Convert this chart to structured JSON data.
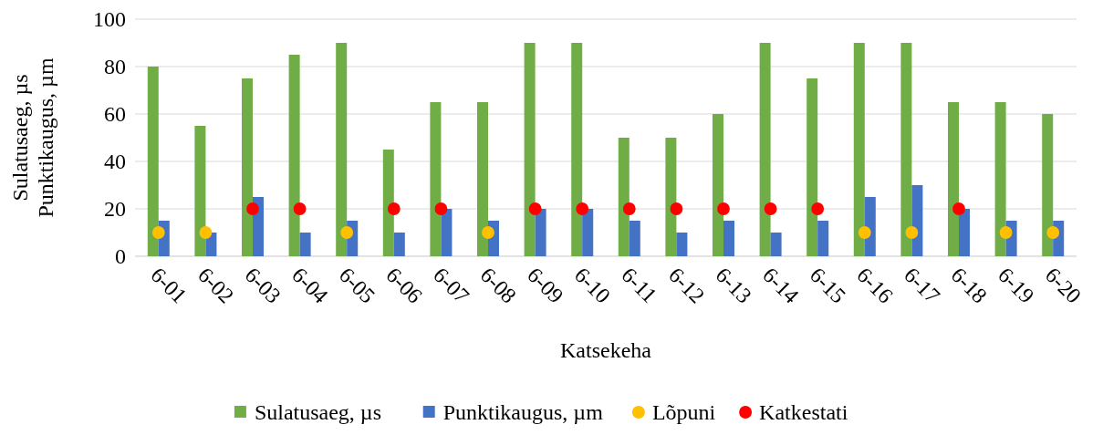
{
  "chart_data": {
    "type": "bar",
    "xlabel": "Katsekeha",
    "ylabel": "Sulatusaeg, µs\nPunktikaugus, µm",
    "categories": [
      "6-01",
      "6-02",
      "6-03",
      "6-04",
      "6-05",
      "6-06",
      "6-07",
      "6-08",
      "6-09",
      "6-10",
      "6-11",
      "6-12",
      "6-13",
      "6-14",
      "6-15",
      "6-16",
      "6-17",
      "6-18",
      "6-19",
      "6-20"
    ],
    "series": [
      {
        "name": "Sulatusaeg, µs",
        "color": "#70ad47",
        "values": [
          80,
          55,
          75,
          85,
          90,
          45,
          65,
          65,
          90,
          90,
          50,
          50,
          60,
          90,
          75,
          90,
          90,
          65,
          65,
          60
        ]
      },
      {
        "name": "Punktikaugus, µm",
        "color": "#4472c4",
        "values": [
          15,
          10,
          25,
          10,
          15,
          10,
          20,
          15,
          20,
          20,
          15,
          10,
          15,
          10,
          15,
          25,
          30,
          20,
          15,
          15
        ]
      },
      {
        "name": "Lõpuni",
        "type": "scatter",
        "color": "#ffc000",
        "x": [
          "6-01",
          "6-02",
          "6-05",
          "6-08",
          "6-16",
          "6-17",
          "6-19",
          "6-20"
        ],
        "values": [
          10,
          10,
          10,
          10,
          10,
          10,
          10,
          10
        ]
      },
      {
        "name": "Katkestati",
        "type": "scatter",
        "color": "#ff0000",
        "x": [
          "6-03",
          "6-04",
          "6-06",
          "6-07",
          "6-09",
          "6-10",
          "6-11",
          "6-12",
          "6-13",
          "6-14",
          "6-15",
          "6-18"
        ],
        "values": [
          20,
          20,
          20,
          20,
          20,
          20,
          20,
          20,
          20,
          20,
          20,
          20
        ]
      }
    ],
    "ylim": [
      0,
      100
    ],
    "yticks": [
      0,
      20,
      40,
      60,
      80,
      100
    ],
    "grid": "y",
    "legend": "bottom",
    "marker": "circle"
  }
}
